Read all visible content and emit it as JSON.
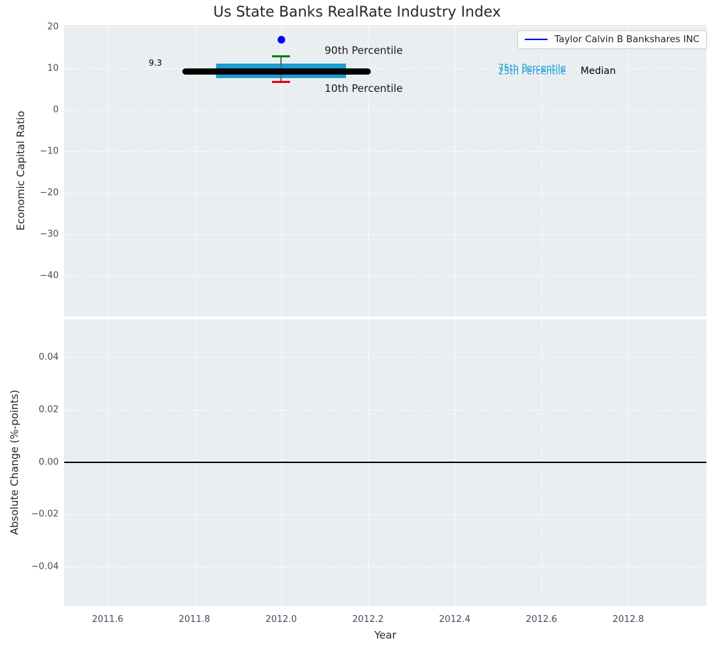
{
  "colors": {
    "figure_bg": "#ffffff",
    "axes_bg": "#e9eef1",
    "grid": "#ffffff",
    "tick_label": "#3f4e61",
    "text": "#262626",
    "company_blue": "#0000ee",
    "percentile_band_cyan": "#1b9dd2",
    "median_black": "#000000",
    "p90_green": "#007d00",
    "p10_red": "#e60000"
  },
  "chart_data": [
    {
      "id": "economic-capital-ratio-panel",
      "type": "line",
      "title": "Us State Banks RealRate Industry Index",
      "ylabel": "Economic Capital Ratio",
      "xlim": [
        2011.5,
        2012.98
      ],
      "ylim": [
        -49.8,
        20.5
      ],
      "grid": "white-dashed",
      "xticks": {
        "values": [
          2011.6,
          2011.8,
          2012.0,
          2012.2,
          2012.4,
          2012.6,
          2012.8
        ],
        "labels": []
      },
      "yticks": {
        "values": [
          20,
          10,
          0,
          -10,
          -20,
          -30,
          -40
        ],
        "labels": [
          "20",
          "10",
          "0",
          "−10",
          "−20",
          "−30",
          "−40"
        ]
      },
      "legend": {
        "position": "upper-right",
        "entries": [
          {
            "label": "Taylor Calvin B Bankshares INC",
            "color": "#0000ee",
            "marker": "line"
          }
        ]
      },
      "series": [
        {
          "name": "industry-25th-75th-percentile-band",
          "type": "band",
          "color": "#1b9dd2",
          "x": [
            2011.85,
            2012.15
          ],
          "y_low": 7.7,
          "y_high": 11.2
        },
        {
          "name": "industry-10th-90th-percentile-whisker",
          "type": "errorbar",
          "x": 2012.0,
          "y_low": 6.8,
          "y_high": 12.9,
          "line_color": "#666666",
          "cap_high_color": "#007d00",
          "cap_low_color": "#e60000"
        },
        {
          "name": "industry-median",
          "type": "line",
          "color": "#000000",
          "linewidth": 9,
          "x": [
            2011.78,
            2012.2
          ],
          "y": [
            9.3,
            9.3
          ]
        },
        {
          "name": "Taylor Calvin B Bankshares INC",
          "type": "scatter",
          "color": "#0000ee",
          "points": [
            {
              "x": 2012.0,
              "y": 17.0
            }
          ]
        }
      ],
      "annotations": [
        {
          "text": "9.3",
          "x": 2011.71,
          "y": 11.3,
          "color": "#000000",
          "size": 12,
          "anchor": "middle"
        },
        {
          "text": "90th Percentile",
          "x": 2012.1,
          "y": 14.4,
          "color": "#1a1a1a",
          "size": 15,
          "anchor": "start"
        },
        {
          "text": "10th Percentile",
          "x": 2012.1,
          "y": 5.1,
          "color": "#1a1a1a",
          "size": 15,
          "anchor": "start"
        },
        {
          "text": "75th Percentile",
          "x": 2012.5,
          "y": 10.0,
          "color": "#1b9dd2",
          "size": 13,
          "anchor": "start"
        },
        {
          "text": "25th Percentile",
          "x": 2012.5,
          "y": 9.2,
          "color": "#1b9dd2",
          "size": 13,
          "anchor": "start"
        },
        {
          "text": "Median",
          "x": 2012.69,
          "y": 9.3,
          "color": "#000000",
          "size": 14,
          "anchor": "start"
        }
      ]
    },
    {
      "id": "absolute-change-panel",
      "type": "line",
      "ylabel": "Absolute Change (%-points)",
      "xlabel": "Year",
      "xlim": [
        2011.5,
        2012.98
      ],
      "ylim": [
        -0.055,
        0.0545
      ],
      "grid": "white-dashed",
      "xticks": {
        "values": [
          2011.6,
          2011.8,
          2012.0,
          2012.2,
          2012.4,
          2012.6,
          2012.8
        ],
        "labels": [
          "2011.6",
          "2011.8",
          "2012.0",
          "2012.2",
          "2012.4",
          "2012.6",
          "2012.8"
        ]
      },
      "yticks": {
        "values": [
          0.04,
          0.02,
          0.0,
          -0.02,
          -0.04
        ],
        "labels": [
          "0.04",
          "0.02",
          "0.00",
          "−0.02",
          "−0.04"
        ]
      },
      "series": [
        {
          "name": "zero-baseline",
          "type": "hline",
          "y": 0.0,
          "color": "#000000",
          "linewidth": 2
        }
      ]
    }
  ]
}
